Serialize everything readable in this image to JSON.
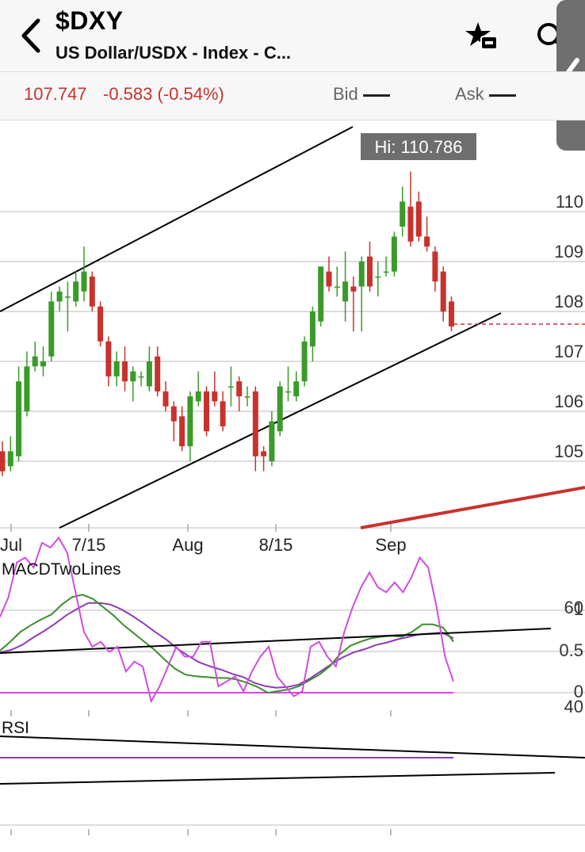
{
  "header": {
    "ticker": "$DXY",
    "subtitle": "US Dollar/USDX - Index - C..."
  },
  "quote": {
    "price": "107.747",
    "change": "-0.583 (-0.54%)",
    "bid_label": "Bid",
    "ask_label": "Ask"
  },
  "colors": {
    "up": "#3a9a2a",
    "down": "#c8322d",
    "macd_line": "#3a8f2a",
    "signal_line": "#8e3ab8",
    "rsi_line": "#d24be0"
  },
  "chart_data": {
    "type": "candlestick",
    "price_axis": {
      "ticks": [
        "110",
        "109",
        "108",
        "107",
        "106",
        "105"
      ]
    },
    "x_axis": {
      "labels": [
        "Jul",
        "7/15",
        "Aug",
        "8/15",
        "Sep"
      ]
    },
    "high_label": "Hi: 110.786",
    "last_price": 107.747,
    "candles": [
      [
        105.2,
        104.8,
        105.4,
        104.7
      ],
      [
        104.9,
        105.2,
        105.5,
        104.8
      ],
      [
        105.1,
        106.6,
        106.9,
        105.0
      ],
      [
        106.0,
        106.9,
        107.2,
        105.9
      ],
      [
        106.9,
        107.1,
        107.4,
        106.8
      ],
      [
        106.9,
        107.0,
        107.3,
        106.7
      ],
      [
        107.1,
        108.2,
        108.4,
        107.0
      ],
      [
        108.2,
        108.4,
        108.5,
        108.0
      ],
      [
        108.3,
        108.3,
        108.6,
        107.6
      ],
      [
        108.2,
        108.6,
        108.8,
        108.1
      ],
      [
        108.4,
        108.8,
        109.3,
        108.2
      ],
      [
        108.7,
        108.1,
        108.8,
        108.0
      ],
      [
        108.1,
        107.4,
        108.2,
        107.3
      ],
      [
        107.4,
        106.7,
        107.5,
        106.5
      ],
      [
        106.7,
        107.0,
        107.2,
        106.5
      ],
      [
        107.0,
        106.6,
        107.3,
        106.4
      ],
      [
        106.6,
        106.8,
        106.9,
        106.2
      ],
      [
        106.7,
        106.7,
        106.8,
        106.5
      ],
      [
        106.5,
        107.0,
        107.3,
        106.4
      ],
      [
        107.1,
        106.4,
        107.3,
        106.3
      ],
      [
        106.4,
        106.1,
        106.6,
        106.0
      ],
      [
        106.1,
        105.8,
        106.2,
        105.4
      ],
      [
        105.9,
        105.3,
        106.1,
        105.2
      ],
      [
        105.3,
        106.3,
        106.4,
        105.0
      ],
      [
        106.2,
        106.4,
        106.8,
        106.1
      ],
      [
        106.4,
        105.6,
        106.5,
        105.5
      ],
      [
        106.4,
        106.2,
        106.8,
        106.1
      ],
      [
        106.2,
        105.7,
        106.4,
        105.6
      ],
      [
        106.5,
        106.5,
        106.9,
        106.1
      ],
      [
        106.6,
        106.3,
        106.7,
        106.0
      ],
      [
        106.3,
        106.3,
        106.5,
        106.1
      ],
      [
        106.4,
        105.1,
        106.5,
        104.8
      ],
      [
        105.2,
        105.1,
        105.3,
        104.8
      ],
      [
        105.0,
        105.8,
        106.0,
        104.9
      ],
      [
        105.6,
        106.5,
        106.6,
        105.5
      ],
      [
        106.4,
        106.4,
        106.9,
        106.2
      ],
      [
        106.3,
        106.6,
        106.8,
        106.2
      ],
      [
        106.6,
        107.4,
        107.5,
        106.5
      ],
      [
        107.3,
        108.0,
        108.1,
        107.0
      ],
      [
        107.8,
        108.9,
        108.9,
        107.7
      ],
      [
        108.8,
        108.5,
        109.1,
        108.4
      ],
      [
        108.5,
        108.5,
        108.9,
        108.3
      ],
      [
        108.2,
        108.6,
        109.2,
        107.8
      ],
      [
        108.5,
        108.4,
        108.7,
        107.6
      ],
      [
        108.5,
        109.0,
        109.1,
        107.6
      ],
      [
        109.1,
        108.5,
        109.4,
        108.4
      ],
      [
        108.7,
        108.7,
        109.0,
        108.3
      ],
      [
        108.8,
        108.8,
        109.1,
        108.7
      ],
      [
        108.8,
        109.5,
        109.6,
        108.7
      ],
      [
        109.7,
        110.2,
        110.5,
        109.5
      ],
      [
        110.1,
        109.4,
        110.8,
        109.3
      ],
      [
        110.2,
        109.5,
        110.4,
        109.4
      ],
      [
        109.5,
        109.3,
        109.9,
        109.2
      ],
      [
        109.2,
        108.6,
        109.3,
        108.4
      ],
      [
        108.8,
        108.0,
        108.9,
        107.8
      ],
      [
        108.2,
        107.7,
        108.3,
        107.6
      ]
    ],
    "macd": {
      "title": "MACDTwoLines",
      "ticks": [
        "1",
        "0.5",
        "0"
      ],
      "macd_line": [
        0.49,
        0.6,
        0.72,
        0.8,
        0.87,
        0.93,
        1.05,
        1.14,
        1.17,
        1.12,
        1.02,
        0.92,
        0.8,
        0.7,
        0.6,
        0.5,
        0.38,
        0.27,
        0.2,
        0.18,
        0.17,
        0.16,
        0.16,
        0.14,
        0.1,
        0.05,
        -0.02,
        0.0,
        0.02,
        0.06,
        0.13,
        0.2,
        0.3,
        0.45,
        0.55,
        0.6,
        0.64,
        0.66,
        0.67,
        0.66,
        0.72,
        0.81,
        0.81,
        0.77,
        0.6
      ],
      "signal_line": [
        0.47,
        0.5,
        0.56,
        0.65,
        0.73,
        0.82,
        0.92,
        1.0,
        1.07,
        1.07,
        1.05,
        0.99,
        0.91,
        0.82,
        0.72,
        0.63,
        0.52,
        0.43,
        0.35,
        0.3,
        0.26,
        0.21,
        0.17,
        0.1,
        0.06,
        0.04,
        0.05,
        0.08,
        0.15,
        0.24,
        0.33,
        0.41,
        0.47,
        0.51,
        0.56,
        0.59,
        0.63,
        0.66,
        0.69,
        0.7,
        0.71,
        0.64
      ]
    },
    "rsi": {
      "title": "RSI",
      "ticks": [
        "60",
        "40"
      ],
      "line": [
        58,
        62,
        69,
        70,
        68,
        73,
        72,
        74,
        71,
        63,
        55,
        52,
        53,
        51,
        52,
        47,
        49,
        48,
        41,
        44,
        48,
        52,
        50,
        50,
        53,
        53,
        44,
        45,
        46,
        43,
        47,
        50,
        52,
        46,
        44,
        42,
        43,
        52,
        53,
        50,
        48,
        55,
        60,
        64,
        67,
        64,
        63,
        65,
        63,
        66,
        70,
        68,
        60,
        50,
        45
      ]
    }
  }
}
